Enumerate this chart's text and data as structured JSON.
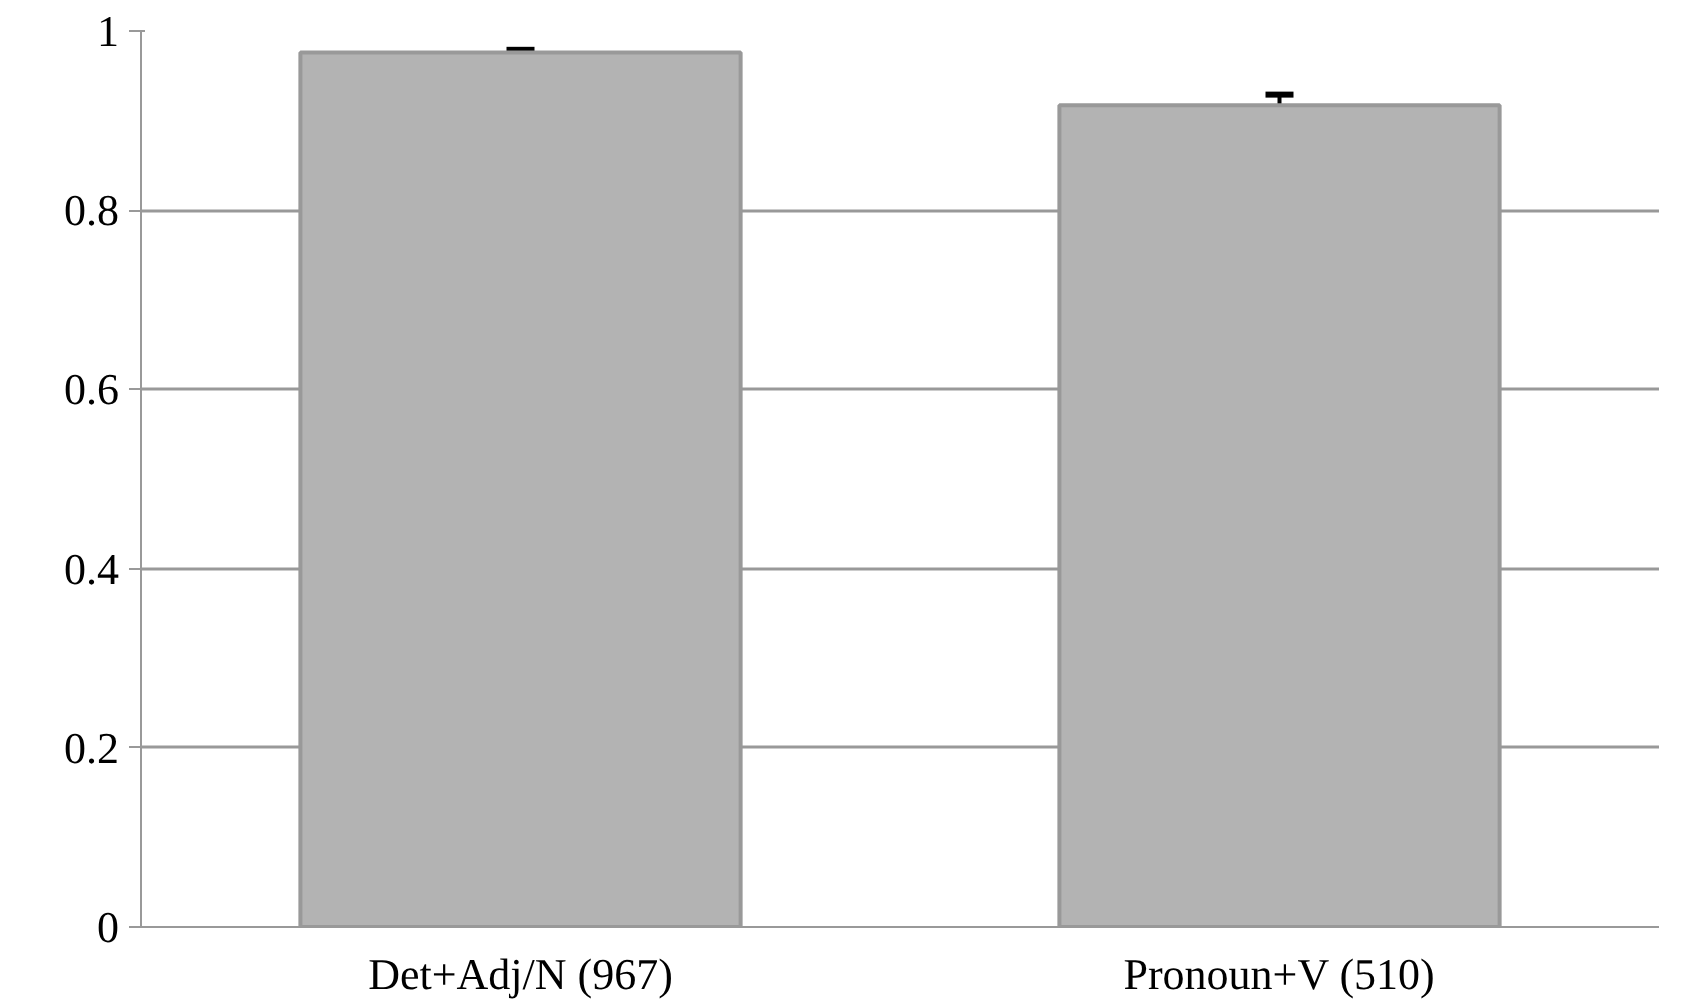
{
  "chart_data": {
    "type": "bar",
    "categories": [
      "Det+Adj/N (967)",
      "Pronoun+V (510)"
    ],
    "values": [
      0.976,
      0.917
    ],
    "errors": [
      0.003,
      0.012
    ],
    "color": "#b3b3b3",
    "ylim": [
      0,
      1
    ],
    "yticks": [
      0,
      0.2,
      0.4,
      0.6,
      0.8,
      1
    ],
    "grid": "y"
  }
}
